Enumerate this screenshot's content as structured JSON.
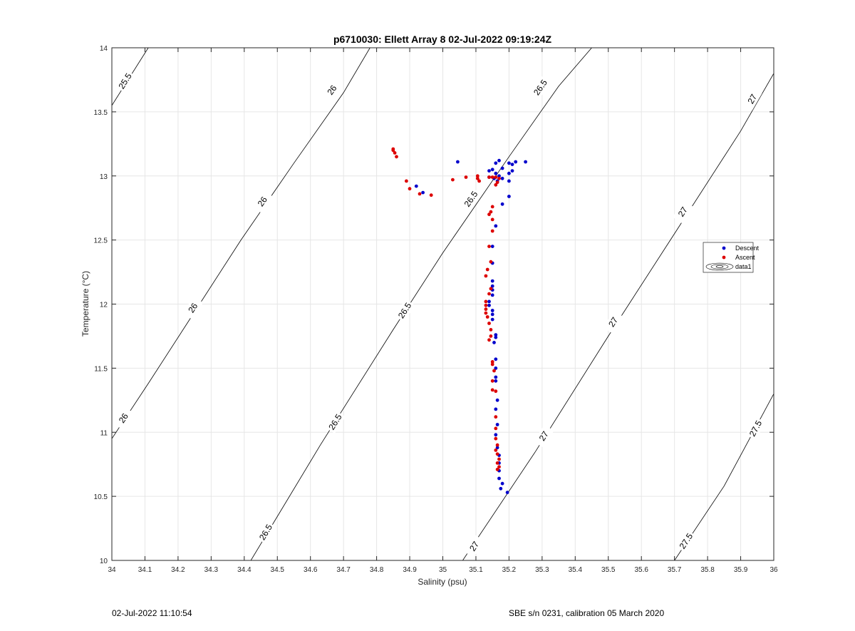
{
  "chart_data": {
    "type": "scatter",
    "title": "p6710030: Ellett Array 8 02-Jul-2022 09:19:24Z",
    "xlabel": "Salinity (psu)",
    "ylabel": "Temperature (°C)",
    "xlim": [
      34,
      36
    ],
    "ylim": [
      10,
      14
    ],
    "xticks": [
      "34",
      "34.1",
      "34.2",
      "34.3",
      "34.4",
      "34.5",
      "34.6",
      "34.7",
      "34.8",
      "34.9",
      "35",
      "35.1",
      "35.2",
      "35.3",
      "35.4",
      "35.5",
      "35.6",
      "35.7",
      "35.8",
      "35.9",
      "36"
    ],
    "yticks": [
      "10",
      "10.5",
      "11",
      "11.5",
      "12",
      "12.5",
      "13",
      "13.5",
      "14"
    ],
    "grid": true,
    "legend_position": "right",
    "legend": [
      "Descent",
      "Ascent",
      "data1"
    ],
    "colors": {
      "descent": "#0000cc",
      "ascent": "#dd0000",
      "contour": "#000000",
      "grid": "#e6e6e6"
    },
    "contours": [
      {
        "level": "25.5",
        "points": [
          [
            34.0,
            13.55
          ],
          [
            34.11,
            14.0
          ]
        ],
        "labels": [
          {
            "s": 34.04,
            "t": 13.74
          }
        ]
      },
      {
        "level": "26",
        "points": [
          [
            34.0,
            10.95
          ],
          [
            34.11,
            11.38
          ],
          [
            34.24,
            11.9
          ],
          [
            34.39,
            12.5
          ],
          [
            34.55,
            13.1
          ],
          [
            34.7,
            13.65
          ],
          [
            34.78,
            14.0
          ]
        ],
        "labels": [
          {
            "s": 34.035,
            "t": 11.11
          },
          {
            "s": 34.245,
            "t": 11.97
          },
          {
            "s": 34.455,
            "t": 12.8
          },
          {
            "s": 34.665,
            "t": 13.67
          }
        ]
      },
      {
        "level": "26.5",
        "points": [
          [
            34.42,
            10.0
          ],
          [
            34.63,
            10.9
          ],
          [
            34.85,
            11.8
          ],
          [
            35.0,
            12.4
          ],
          [
            35.2,
            13.15
          ],
          [
            35.35,
            13.7
          ],
          [
            35.45,
            14.0
          ]
        ],
        "labels": [
          {
            "s": 34.465,
            "t": 10.22
          },
          {
            "s": 34.675,
            "t": 11.08
          },
          {
            "s": 34.885,
            "t": 11.95
          },
          {
            "s": 35.085,
            "t": 12.82
          },
          {
            "s": 35.295,
            "t": 13.69
          }
        ]
      },
      {
        "level": "27",
        "points": [
          [
            35.06,
            10.0
          ],
          [
            35.28,
            10.85
          ],
          [
            35.5,
            11.75
          ],
          [
            35.7,
            12.55
          ],
          [
            35.9,
            13.35
          ],
          [
            36.0,
            13.8
          ]
        ],
        "labels": [
          {
            "s": 35.095,
            "t": 10.11
          },
          {
            "s": 35.305,
            "t": 10.97
          },
          {
            "s": 35.515,
            "t": 11.86
          },
          {
            "s": 35.725,
            "t": 12.72
          },
          {
            "s": 35.935,
            "t": 13.6
          }
        ]
      },
      {
        "level": "27.5",
        "points": [
          [
            35.7,
            10.0
          ],
          [
            35.85,
            10.58
          ],
          [
            36.0,
            11.3
          ]
        ],
        "labels": [
          {
            "s": 35.735,
            "t": 10.15
          },
          {
            "s": 35.945,
            "t": 11.03
          }
        ]
      }
    ],
    "series": [
      {
        "name": "Descent",
        "points": [
          [
            35.045,
            13.11
          ],
          [
            35.17,
            13.12
          ],
          [
            35.25,
            13.11
          ],
          [
            35.22,
            13.11
          ],
          [
            35.21,
            13.09
          ],
          [
            35.2,
            13.1
          ],
          [
            35.16,
            13.1
          ],
          [
            35.15,
            13.05
          ],
          [
            35.14,
            13.04
          ],
          [
            35.16,
            13.02
          ],
          [
            35.18,
            13.06
          ],
          [
            35.21,
            13.04
          ],
          [
            35.2,
            13.02
          ],
          [
            35.17,
            13.0
          ],
          [
            35.18,
            12.98
          ],
          [
            35.2,
            12.96
          ],
          [
            35.165,
            12.96
          ],
          [
            35.155,
            12.98
          ],
          [
            35.14,
            12.99
          ],
          [
            35.2,
            12.84
          ],
          [
            35.18,
            12.78
          ],
          [
            34.92,
            12.92
          ],
          [
            34.94,
            12.87
          ],
          [
            35.16,
            12.61
          ],
          [
            35.15,
            12.45
          ],
          [
            35.15,
            12.32
          ],
          [
            35.15,
            12.18
          ],
          [
            35.15,
            12.14
          ],
          [
            35.15,
            12.11
          ],
          [
            35.15,
            12.07
          ],
          [
            35.14,
            12.02
          ],
          [
            35.14,
            11.99
          ],
          [
            35.15,
            11.95
          ],
          [
            35.15,
            11.92
          ],
          [
            35.15,
            11.88
          ],
          [
            35.16,
            11.76
          ],
          [
            35.16,
            11.74
          ],
          [
            35.155,
            11.7
          ],
          [
            35.16,
            11.57
          ],
          [
            35.16,
            11.5
          ],
          [
            35.16,
            11.43
          ],
          [
            35.16,
            11.4
          ],
          [
            35.165,
            11.25
          ],
          [
            35.16,
            11.18
          ],
          [
            35.165,
            11.06
          ],
          [
            35.16,
            10.98
          ],
          [
            35.165,
            10.88
          ],
          [
            35.17,
            10.82
          ],
          [
            35.17,
            10.76
          ],
          [
            35.17,
            10.7
          ],
          [
            35.17,
            10.64
          ],
          [
            35.18,
            10.6
          ],
          [
            35.175,
            10.56
          ],
          [
            35.195,
            10.53
          ]
        ]
      },
      {
        "name": "Ascent",
        "points": [
          [
            34.85,
            13.21
          ],
          [
            34.85,
            13.2
          ],
          [
            34.855,
            13.18
          ],
          [
            34.86,
            13.15
          ],
          [
            34.89,
            12.96
          ],
          [
            34.9,
            12.9
          ],
          [
            34.93,
            12.86
          ],
          [
            34.965,
            12.85
          ],
          [
            35.03,
            12.97
          ],
          [
            35.07,
            12.99
          ],
          [
            35.105,
            13.0
          ],
          [
            35.105,
            12.98
          ],
          [
            35.11,
            12.96
          ],
          [
            35.14,
            12.99
          ],
          [
            35.15,
            12.99
          ],
          [
            35.16,
            12.99
          ],
          [
            35.17,
            12.98
          ],
          [
            35.165,
            12.95
          ],
          [
            35.16,
            12.93
          ],
          [
            35.15,
            12.76
          ],
          [
            35.145,
            12.72
          ],
          [
            35.14,
            12.7
          ],
          [
            35.15,
            12.66
          ],
          [
            35.15,
            12.57
          ],
          [
            35.14,
            12.45
          ],
          [
            35.145,
            12.33
          ],
          [
            35.135,
            12.27
          ],
          [
            35.13,
            12.22
          ],
          [
            35.145,
            12.12
          ],
          [
            35.14,
            12.08
          ],
          [
            35.13,
            12.02
          ],
          [
            35.13,
            11.99
          ],
          [
            35.13,
            11.96
          ],
          [
            35.13,
            11.93
          ],
          [
            35.135,
            11.9
          ],
          [
            35.14,
            11.85
          ],
          [
            35.145,
            11.8
          ],
          [
            35.145,
            11.75
          ],
          [
            35.14,
            11.72
          ],
          [
            35.15,
            11.55
          ],
          [
            35.15,
            11.53
          ],
          [
            35.155,
            11.48
          ],
          [
            35.15,
            11.4
          ],
          [
            35.15,
            11.33
          ],
          [
            35.16,
            11.32
          ],
          [
            35.16,
            11.12
          ],
          [
            35.16,
            11.03
          ],
          [
            35.16,
            10.95
          ],
          [
            35.165,
            10.9
          ],
          [
            35.16,
            10.86
          ],
          [
            35.165,
            10.83
          ],
          [
            35.17,
            10.79
          ],
          [
            35.165,
            10.76
          ],
          [
            35.17,
            10.73
          ],
          [
            35.165,
            10.71
          ]
        ]
      }
    ]
  },
  "footer": {
    "left": "02-Jul-2022 11:10:54",
    "right": "SBE s/n 0231, calibration 05 March 2020"
  }
}
